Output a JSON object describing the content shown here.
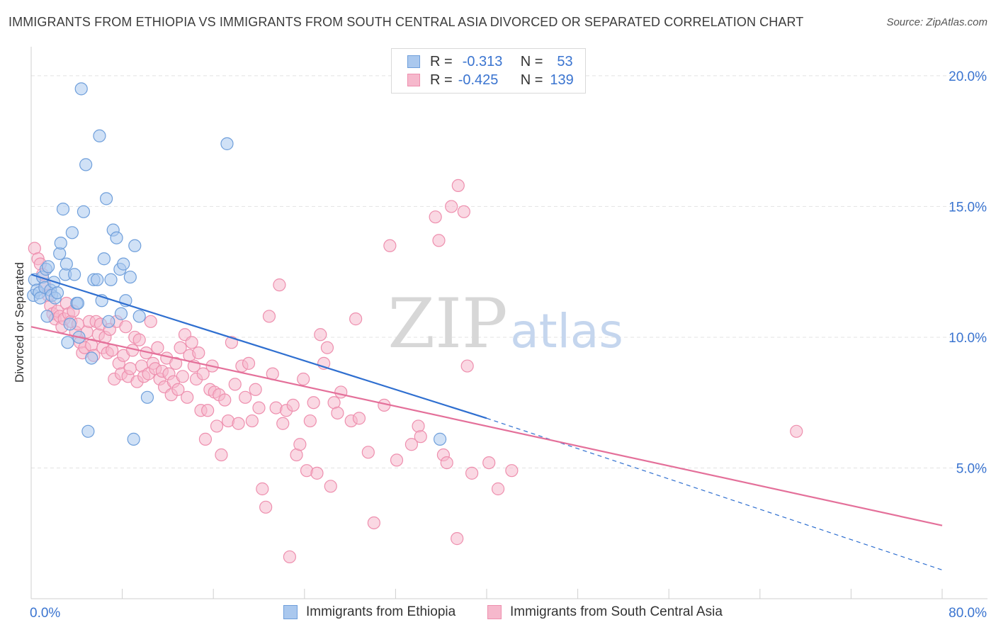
{
  "title": "IMMIGRANTS FROM ETHIOPIA VS IMMIGRANTS FROM SOUTH CENTRAL ASIA DIVORCED OR SEPARATED CORRELATION CHART",
  "source": "Source: ZipAtlas.com",
  "watermark": {
    "zip": "ZIP",
    "atlas": "atlas"
  },
  "colors": {
    "ethiopia_fill": "#aac8ee",
    "ethiopia_stroke": "#6f9fdb",
    "ethiopia_line": "#2f6fd0",
    "sca_fill": "#f6b8cc",
    "sca_stroke": "#ee8fae",
    "sca_line": "#e4709a",
    "tick_label": "#3a74d0"
  },
  "legend": {
    "row1": {
      "r_label": "R =",
      "r_value": "-0.313",
      "n_label": "N =",
      "n_value": "53"
    },
    "row2": {
      "r_label": "R =",
      "r_value": "-0.425",
      "n_label": "N =",
      "n_value": "139"
    }
  },
  "chart_data": {
    "type": "scatter",
    "title": "IMMIGRANTS FROM ETHIOPIA VS IMMIGRANTS FROM SOUTH CENTRAL ASIA DIVORCED OR SEPARATED CORRELATION CHART",
    "xlabel": "",
    "ylabel": "Divorced or Separated",
    "xlim": [
      0,
      80
    ],
    "ylim": [
      0,
      21
    ],
    "x_tick_labels": [
      "0.0%",
      "80.0%"
    ],
    "y_ticks": [
      {
        "value": 5,
        "label": "5.0%"
      },
      {
        "value": 10,
        "label": "10.0%"
      },
      {
        "value": 15,
        "label": "15.0%"
      },
      {
        "value": 20,
        "label": "20.0%"
      }
    ],
    "grid": true,
    "legend_position": "top-center",
    "series": [
      {
        "name": "Immigrants from Ethiopia",
        "color_key": "ethiopia",
        "r": -0.313,
        "n": 53,
        "trend": {
          "x0": 0,
          "y0": 12.4,
          "x1": 40,
          "y1": 6.9,
          "dashed_to_x": 80,
          "dashed_to_y": 1.1
        },
        "points": [
          [
            0.2,
            11.6
          ],
          [
            0.3,
            12.2
          ],
          [
            0.5,
            11.8
          ],
          [
            0.7,
            11.7
          ],
          [
            0.8,
            11.5
          ],
          [
            1.0,
            12.3
          ],
          [
            1.2,
            11.9
          ],
          [
            1.3,
            12.6
          ],
          [
            1.4,
            10.8
          ],
          [
            1.5,
            12.7
          ],
          [
            1.7,
            11.8
          ],
          [
            1.8,
            11.6
          ],
          [
            2.0,
            12.1
          ],
          [
            2.1,
            11.5
          ],
          [
            2.3,
            11.7
          ],
          [
            2.5,
            13.2
          ],
          [
            2.6,
            13.6
          ],
          [
            2.8,
            14.9
          ],
          [
            3.0,
            12.4
          ],
          [
            3.1,
            12.8
          ],
          [
            3.2,
            9.8
          ],
          [
            3.4,
            10.5
          ],
          [
            3.6,
            14.0
          ],
          [
            3.8,
            12.4
          ],
          [
            4.0,
            11.3
          ],
          [
            4.1,
            11.3
          ],
          [
            4.2,
            10.0
          ],
          [
            4.4,
            19.5
          ],
          [
            4.6,
            14.8
          ],
          [
            4.8,
            16.6
          ],
          [
            5.0,
            6.4
          ],
          [
            5.3,
            9.2
          ],
          [
            5.5,
            12.2
          ],
          [
            5.8,
            12.2
          ],
          [
            6.0,
            17.7
          ],
          [
            6.2,
            11.4
          ],
          [
            6.4,
            13.0
          ],
          [
            6.6,
            15.3
          ],
          [
            6.8,
            10.6
          ],
          [
            7.0,
            12.2
          ],
          [
            7.2,
            14.1
          ],
          [
            7.5,
            13.8
          ],
          [
            7.8,
            12.6
          ],
          [
            7.9,
            10.9
          ],
          [
            8.1,
            12.8
          ],
          [
            8.3,
            11.4
          ],
          [
            8.7,
            12.3
          ],
          [
            9.0,
            6.1
          ],
          [
            9.1,
            13.5
          ],
          [
            9.5,
            10.8
          ],
          [
            10.2,
            7.7
          ],
          [
            17.2,
            17.4
          ],
          [
            35.9,
            6.1
          ]
        ]
      },
      {
        "name": "Immigrants from South Central Asia",
        "color_key": "sca",
        "r": -0.425,
        "n": 139,
        "trend": {
          "x0": 0,
          "y0": 10.4,
          "x1": 80,
          "y1": 2.8
        },
        "points": [
          [
            0.3,
            13.4
          ],
          [
            0.6,
            13.0
          ],
          [
            0.8,
            12.8
          ],
          [
            1.0,
            12.4
          ],
          [
            1.2,
            12.0
          ],
          [
            1.5,
            11.6
          ],
          [
            1.7,
            11.2
          ],
          [
            1.9,
            10.9
          ],
          [
            2.1,
            10.7
          ],
          [
            2.3,
            11.0
          ],
          [
            2.5,
            10.8
          ],
          [
            2.7,
            10.4
          ],
          [
            2.9,
            10.7
          ],
          [
            3.1,
            11.3
          ],
          [
            3.3,
            10.9
          ],
          [
            3.5,
            10.6
          ],
          [
            3.7,
            11.0
          ],
          [
            3.9,
            10.2
          ],
          [
            4.1,
            10.5
          ],
          [
            4.3,
            9.8
          ],
          [
            4.5,
            9.4
          ],
          [
            4.7,
            9.6
          ],
          [
            4.9,
            10.2
          ],
          [
            5.1,
            10.6
          ],
          [
            5.3,
            9.7
          ],
          [
            5.5,
            9.3
          ],
          [
            5.7,
            10.6
          ],
          [
            5.9,
            10.1
          ],
          [
            6.1,
            10.5
          ],
          [
            6.3,
            9.6
          ],
          [
            6.5,
            10.0
          ],
          [
            6.7,
            9.4
          ],
          [
            6.9,
            10.3
          ],
          [
            7.1,
            9.5
          ],
          [
            7.3,
            8.4
          ],
          [
            7.5,
            10.6
          ],
          [
            7.7,
            9.0
          ],
          [
            7.9,
            8.6
          ],
          [
            8.1,
            9.3
          ],
          [
            8.3,
            10.4
          ],
          [
            8.5,
            8.5
          ],
          [
            8.7,
            8.8
          ],
          [
            8.9,
            9.5
          ],
          [
            9.1,
            10.0
          ],
          [
            9.3,
            8.3
          ],
          [
            9.5,
            9.9
          ],
          [
            9.7,
            8.9
          ],
          [
            9.9,
            8.5
          ],
          [
            10.1,
            9.4
          ],
          [
            10.3,
            8.6
          ],
          [
            10.5,
            10.6
          ],
          [
            10.7,
            9.0
          ],
          [
            10.9,
            8.8
          ],
          [
            11.1,
            9.6
          ],
          [
            11.3,
            8.4
          ],
          [
            11.5,
            8.7
          ],
          [
            11.7,
            8.1
          ],
          [
            11.9,
            9.2
          ],
          [
            12.1,
            8.6
          ],
          [
            12.3,
            7.8
          ],
          [
            12.5,
            8.3
          ],
          [
            12.7,
            9.0
          ],
          [
            12.9,
            8.0
          ],
          [
            13.1,
            9.6
          ],
          [
            13.3,
            8.5
          ],
          [
            13.5,
            10.1
          ],
          [
            13.7,
            7.7
          ],
          [
            13.9,
            9.3
          ],
          [
            14.1,
            9.8
          ],
          [
            14.3,
            8.9
          ],
          [
            14.5,
            8.4
          ],
          [
            14.7,
            9.4
          ],
          [
            14.9,
            7.2
          ],
          [
            15.1,
            8.6
          ],
          [
            15.3,
            6.1
          ],
          [
            15.5,
            7.2
          ],
          [
            15.7,
            8.0
          ],
          [
            15.9,
            8.9
          ],
          [
            16.1,
            7.9
          ],
          [
            16.3,
            6.6
          ],
          [
            16.5,
            7.8
          ],
          [
            16.7,
            5.5
          ],
          [
            17.0,
            7.6
          ],
          [
            17.3,
            6.8
          ],
          [
            17.6,
            9.8
          ],
          [
            17.9,
            8.2
          ],
          [
            18.2,
            6.7
          ],
          [
            18.5,
            8.9
          ],
          [
            18.8,
            7.7
          ],
          [
            19.1,
            9.0
          ],
          [
            19.4,
            6.8
          ],
          [
            19.7,
            8.0
          ],
          [
            20.0,
            7.3
          ],
          [
            20.3,
            4.2
          ],
          [
            20.6,
            3.5
          ],
          [
            20.9,
            10.8
          ],
          [
            21.2,
            8.6
          ],
          [
            21.5,
            7.3
          ],
          [
            21.8,
            12.0
          ],
          [
            22.1,
            6.7
          ],
          [
            22.4,
            7.2
          ],
          [
            22.7,
            1.6
          ],
          [
            23.0,
            7.4
          ],
          [
            23.3,
            5.5
          ],
          [
            23.6,
            5.9
          ],
          [
            23.9,
            8.4
          ],
          [
            24.2,
            4.9
          ],
          [
            24.5,
            6.8
          ],
          [
            24.8,
            7.5
          ],
          [
            25.1,
            4.8
          ],
          [
            25.4,
            10.1
          ],
          [
            25.7,
            9.0
          ],
          [
            26.0,
            9.6
          ],
          [
            26.3,
            4.3
          ],
          [
            26.6,
            7.5
          ],
          [
            26.9,
            7.1
          ],
          [
            27.2,
            7.9
          ],
          [
            28.1,
            6.8
          ],
          [
            28.5,
            10.7
          ],
          [
            28.8,
            6.9
          ],
          [
            29.6,
            5.6
          ],
          [
            30.1,
            2.9
          ],
          [
            31.0,
            7.4
          ],
          [
            31.5,
            13.5
          ],
          [
            32.1,
            5.3
          ],
          [
            33.4,
            5.9
          ],
          [
            34.0,
            6.6
          ],
          [
            34.2,
            6.2
          ],
          [
            35.5,
            14.6
          ],
          [
            35.8,
            13.7
          ],
          [
            36.2,
            5.5
          ],
          [
            36.5,
            5.2
          ],
          [
            36.9,
            15.0
          ],
          [
            37.4,
            2.3
          ],
          [
            37.5,
            15.8
          ],
          [
            38.0,
            14.8
          ],
          [
            38.3,
            8.9
          ],
          [
            38.7,
            4.8
          ],
          [
            40.2,
            5.2
          ],
          [
            41.0,
            4.2
          ],
          [
            42.2,
            4.9
          ],
          [
            67.2,
            6.4
          ]
        ]
      }
    ]
  },
  "bottom_legend": [
    {
      "label": "Immigrants from Ethiopia"
    },
    {
      "label": "Immigrants from South Central Asia"
    }
  ]
}
